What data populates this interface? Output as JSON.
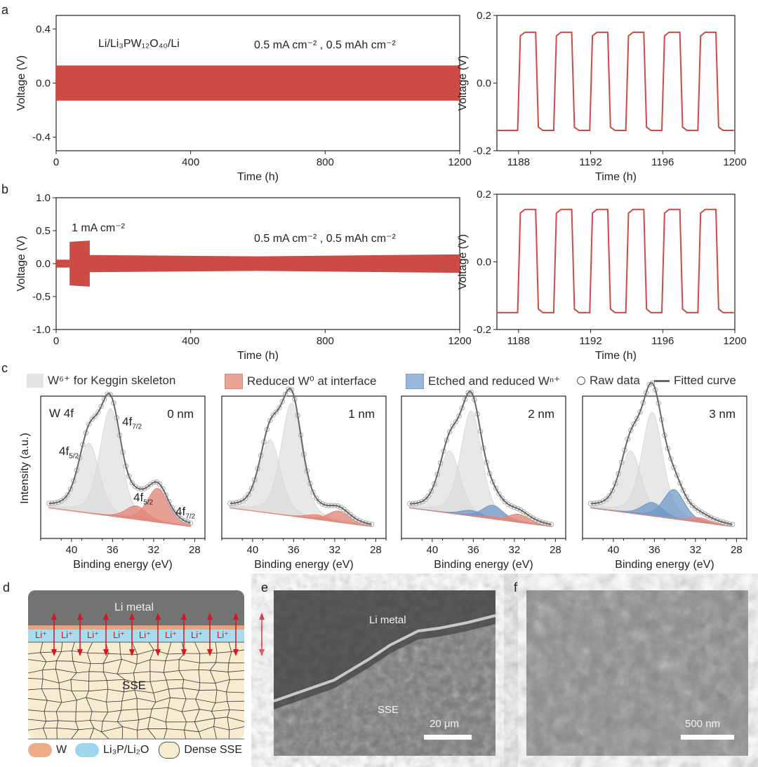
{
  "panels": {
    "a": "a",
    "b": "b",
    "c": "c",
    "d": "d",
    "e": "e",
    "f": "f"
  },
  "panel_a": {
    "cell": "Li/Li₃PW₁₂O₄₀/Li",
    "condition": "0.5 mA cm⁻² , 0.5 mAh cm⁻²"
  },
  "panel_b": {
    "high_rate": "1 mA cm⁻²",
    "condition": "0.5 mA cm⁻² , 0.5 mAh cm⁻²"
  },
  "panel_c": {
    "legend": {
      "w6": "W⁶⁺ for Keggin skeleton",
      "w0": "Reduced W⁰ at interface",
      "wn": "Etched and reduced Wⁿ⁺",
      "raw": "Raw data",
      "fit": "Fitted curve"
    },
    "element": "W 4f",
    "peak_main": "4f",
    "sub_72": "7/2",
    "sub_52": "5/2",
    "ylabel": "Intensity (a.u.)"
  },
  "panel_d": {
    "top": "Li metal",
    "ion": "Li⁺",
    "bulk": "SSE",
    "legend": {
      "w": "W",
      "li3p": "Li₃P/Li₂O",
      "dense": "Dense SSE"
    }
  },
  "panel_e": {
    "top": "Li metal",
    "bottom": "SSE",
    "scale": "20 μm"
  },
  "panel_f": {
    "scale": "500 nm"
  },
  "colors": {
    "red": "#cc4b45",
    "w6": "#d9d9d9",
    "w0": "#e2877a",
    "wn": "#6f98c8",
    "fit": "#666666"
  },
  "chart_data": [
    {
      "id": "a-main",
      "type": "area",
      "title": "",
      "xlabel": "Time (h)",
      "ylabel": "Voltage (V)",
      "xlim": [
        0,
        1200
      ],
      "ylim": [
        -0.5,
        0.5
      ],
      "xticks": [
        0,
        400,
        800,
        1200
      ],
      "yticks": [
        -0.4,
        0.0,
        0.4
      ],
      "ytick_labels": [
        "-0.4",
        "0.0",
        "0.4"
      ],
      "envelope": [
        [
          0,
          0.13
        ],
        [
          1200,
          0.13
        ]
      ]
    },
    {
      "id": "a-inset",
      "type": "line",
      "xlabel": "Time (h)",
      "ylabel": "Voltage (V)",
      "xlim": [
        1186.8,
        1200
      ],
      "ylim": [
        -0.2,
        0.2
      ],
      "xticks": [
        1188,
        1192,
        1196,
        1200
      ],
      "yticks": [
        -0.2,
        0.0,
        0.2
      ],
      "ytick_labels": [
        "-0.2",
        "0.0",
        "0.2"
      ],
      "square_wave": {
        "start": 1187.0,
        "period": 2,
        "high": 0.15,
        "low": -0.14
      }
    },
    {
      "id": "b-main",
      "type": "area",
      "xlabel": "Time (h)",
      "ylabel": "Voltage (V)",
      "xlim": [
        0,
        1200
      ],
      "ylim": [
        -1.0,
        1.0
      ],
      "xticks": [
        0,
        400,
        800,
        1200
      ],
      "yticks": [
        -1.0,
        -0.5,
        0.0,
        0.5,
        1.0
      ],
      "ytick_labels": [
        "-1.0",
        "-0.5",
        "0.0",
        "0.5",
        "1.0"
      ],
      "envelope": [
        [
          0,
          0.06
        ],
        [
          40,
          0.06
        ],
        [
          40,
          0.33
        ],
        [
          100,
          0.35
        ],
        [
          100,
          0.13
        ],
        [
          600,
          0.11
        ],
        [
          1200,
          0.14
        ]
      ]
    },
    {
      "id": "b-inset",
      "type": "line",
      "xlabel": "Time (h)",
      "ylabel": "Voltage (V)",
      "xlim": [
        1186.8,
        1200
      ],
      "ylim": [
        -0.2,
        0.2
      ],
      "xticks": [
        1188,
        1192,
        1196,
        1200
      ],
      "yticks": [
        -0.2,
        0.0,
        0.2
      ],
      "ytick_labels": [
        "-0.2",
        "0.0",
        "0.2"
      ],
      "square_wave": {
        "start": 1187.0,
        "period": 2,
        "high": 0.155,
        "low": -0.15
      }
    },
    {
      "id": "c-spectra",
      "type": "area",
      "xlabel": "Binding energy (eV)",
      "xlim": [
        43,
        27
      ],
      "xticks": [
        40,
        36,
        32,
        28
      ],
      "depths": [
        "0 nm",
        "1 nm",
        "2 nm",
        "3 nm"
      ],
      "peaks": [
        {
          "w6": [
            [
              36.2,
              0.95
            ],
            [
              38.3,
              0.62
            ]
          ],
          "w0": [
            [
              31.6,
              0.3
            ],
            [
              33.7,
              0.12
            ]
          ],
          "wn": []
        },
        {
          "w6": [
            [
              36.2,
              1.0
            ],
            [
              38.3,
              0.65
            ]
          ],
          "w0": [
            [
              31.6,
              0.1
            ],
            [
              33.7,
              0.04
            ]
          ],
          "wn": []
        },
        {
          "w6": [
            [
              36.2,
              0.93
            ],
            [
              38.3,
              0.55
            ]
          ],
          "w0": [
            [
              31.6,
              0.07
            ],
            [
              33.7,
              0.02
            ]
          ],
          "wn": [
            [
              34.1,
              0.12
            ],
            [
              36.2,
              0.05
            ]
          ]
        },
        {
          "w6": [
            [
              36.2,
              0.92
            ],
            [
              38.3,
              0.55
            ]
          ],
          "w0": [
            [
              31.6,
              0.04
            ]
          ],
          "wn": [
            [
              34.1,
              0.26
            ],
            [
              36.2,
              0.12
            ]
          ]
        }
      ]
    }
  ]
}
